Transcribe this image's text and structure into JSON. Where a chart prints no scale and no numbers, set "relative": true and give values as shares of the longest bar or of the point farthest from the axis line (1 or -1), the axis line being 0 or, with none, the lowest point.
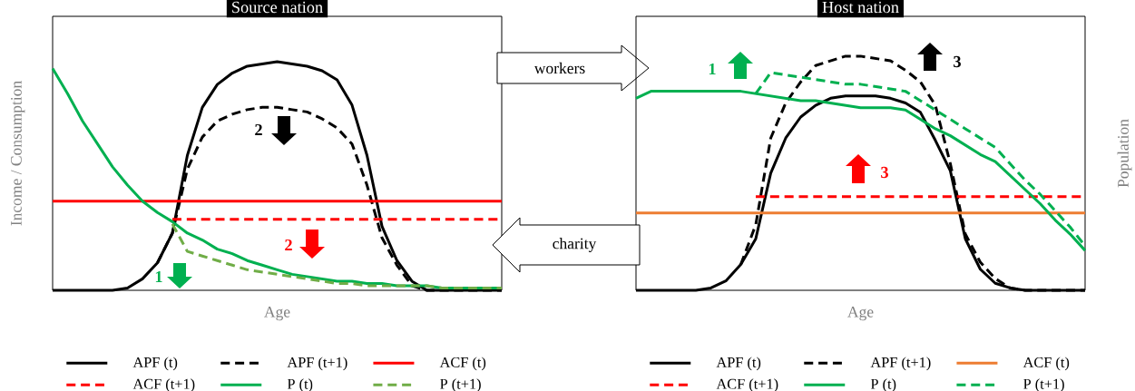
{
  "chart_data": [
    {
      "type": "line",
      "title": "Source nation",
      "xlabel": "Age",
      "ylabel": "Income / Consumption",
      "relative": true,
      "legend": "bottom",
      "categories": [
        null,
        null,
        null,
        null,
        null,
        null,
        null,
        null,
        null,
        null,
        null,
        null,
        null,
        null,
        null,
        null,
        null,
        null,
        null,
        null,
        null,
        null,
        null,
        null,
        null,
        null,
        null,
        null,
        null,
        null,
        null
      ],
      "annotations": [
        "1",
        "2",
        "2",
        "workers"
      ],
      "series": [
        {
          "name": "APF (t)",
          "color": "#000000",
          "line_style": "solid",
          "values": [
            0,
            0,
            0,
            0,
            0,
            0.01,
            0.05,
            0.12,
            0.25,
            0.59,
            0.8,
            0.9,
            0.95,
            0.98,
            0.99,
            1,
            0.99,
            0.98,
            0.96,
            0.92,
            0.81,
            0.59,
            0.28,
            0.13,
            0.04,
            0,
            0,
            0,
            0,
            0,
            0
          ]
        },
        {
          "name": "APF (t+1)",
          "color": "#000000",
          "line_style": "dashed",
          "values": [
            null,
            null,
            null,
            null,
            null,
            null,
            null,
            0.12,
            0.25,
            0.53,
            0.67,
            0.74,
            0.77,
            0.79,
            0.8,
            0.8,
            0.79,
            0.78,
            0.75,
            0.71,
            0.64,
            0.46,
            0.23,
            0.11,
            0.02,
            0,
            0,
            0,
            0,
            0,
            0
          ]
        },
        {
          "name": "ACF (t)",
          "color": "#ff0000",
          "line_style": "solid",
          "values": [
            0.39,
            0.39,
            0.39,
            0.39,
            0.39,
            0.39,
            0.39,
            0.39,
            0.39,
            0.39,
            0.39,
            0.39,
            0.39,
            0.39,
            0.39,
            0.39,
            0.39,
            0.39,
            0.39,
            0.39,
            0.39,
            0.39,
            0.39,
            0.39,
            0.39,
            0.39,
            0.39,
            0.39,
            0.39,
            0.39,
            0.39
          ]
        },
        {
          "name": "ACF (t+1)",
          "color": "#ff0000",
          "line_style": "dashed",
          "values": [
            null,
            null,
            null,
            null,
            null,
            null,
            null,
            null,
            0.31,
            0.31,
            0.31,
            0.31,
            0.31,
            0.31,
            0.31,
            0.31,
            0.31,
            0.31,
            0.31,
            0.31,
            0.31,
            0.31,
            0.31,
            0.31,
            0.31,
            0.31,
            0.31,
            0.31,
            0.31,
            0.31,
            0.31
          ]
        },
        {
          "name": "P (t)",
          "color": "#00b050",
          "line_style": "solid",
          "values": [
            0.97,
            0.86,
            0.74,
            0.64,
            0.54,
            0.46,
            0.39,
            0.34,
            0.3,
            0.25,
            0.22,
            0.18,
            0.16,
            0.13,
            0.11,
            0.09,
            0.07,
            0.06,
            0.05,
            0.04,
            0.04,
            0.03,
            0.03,
            0.02,
            0.02,
            0.02,
            0.01,
            0.01,
            0.01,
            0.01,
            0.01
          ]
        },
        {
          "name": "P (t+1)",
          "color": "#70ad47",
          "line_style": "dashed",
          "values": [
            null,
            null,
            null,
            null,
            null,
            null,
            null,
            null,
            0.29,
            0.17,
            0.15,
            0.13,
            0.11,
            0.09,
            0.08,
            0.07,
            0.06,
            0.05,
            0.04,
            0.03,
            0.03,
            0.02,
            0.02,
            0.02,
            0.02,
            0.02,
            0.01,
            0.01,
            0.01,
            0.01,
            0.01
          ]
        }
      ]
    },
    {
      "type": "line",
      "title": "Host nation",
      "xlabel": "Age",
      "y2label": "Population",
      "relative": true,
      "legend": "bottom",
      "categories": [
        null,
        null,
        null,
        null,
        null,
        null,
        null,
        null,
        null,
        null,
        null,
        null,
        null,
        null,
        null,
        null,
        null,
        null,
        null,
        null,
        null,
        null,
        null,
        null,
        null,
        null,
        null,
        null,
        null,
        null,
        null
      ],
      "annotations": [
        "1",
        "3",
        "3",
        "charity"
      ],
      "series": [
        {
          "name": "APF (t)",
          "color": "#000000",
          "line_style": "solid",
          "values": [
            0,
            0,
            0,
            0,
            0,
            0.01,
            0.04,
            0.11,
            0.22,
            0.5,
            0.65,
            0.74,
            0.79,
            0.82,
            0.83,
            0.83,
            0.83,
            0.82,
            0.8,
            0.76,
            0.64,
            0.51,
            0.22,
            0.09,
            0.03,
            0.01,
            0,
            0,
            0,
            0,
            0
          ]
        },
        {
          "name": "APF (t+1)",
          "color": "#000000",
          "line_style": "dashed",
          "values": [
            null,
            null,
            null,
            null,
            null,
            null,
            null,
            0.11,
            0.28,
            0.65,
            0.8,
            0.89,
            0.96,
            0.98,
            1,
            1,
            0.99,
            0.98,
            0.94,
            0.89,
            0.79,
            0.54,
            0.24,
            0.12,
            0.05,
            0.01,
            0,
            0,
            0,
            0,
            0
          ]
        },
        {
          "name": "ACF (t)",
          "color": "#ed7d31",
          "line_style": "solid",
          "values": [
            0.33,
            0.33,
            0.33,
            0.33,
            0.33,
            0.33,
            0.33,
            0.33,
            0.33,
            0.33,
            0.33,
            0.33,
            0.33,
            0.33,
            0.33,
            0.33,
            0.33,
            0.33,
            0.33,
            0.33,
            0.33,
            0.33,
            0.33,
            0.33,
            0.33,
            0.33,
            0.33,
            0.33,
            0.33,
            0.33,
            0.33
          ]
        },
        {
          "name": "ACF (t+1)",
          "color": "#ff0000",
          "line_style": "dashed",
          "values": [
            null,
            null,
            null,
            null,
            null,
            null,
            null,
            null,
            0.4,
            0.4,
            0.4,
            0.4,
            0.4,
            0.4,
            0.4,
            0.4,
            0.4,
            0.4,
            0.4,
            0.4,
            0.4,
            0.4,
            0.4,
            0.4,
            0.4,
            0.4,
            0.4,
            0.4,
            0.4,
            0.4,
            0.4
          ]
        },
        {
          "name": "P (t)",
          "color": "#00b050",
          "line_style": "solid",
          "values": [
            0.82,
            0.85,
            0.85,
            0.85,
            0.85,
            0.85,
            0.85,
            0.85,
            0.84,
            0.83,
            0.82,
            0.81,
            0.81,
            0.8,
            0.79,
            0.78,
            0.78,
            0.78,
            0.77,
            0.73,
            0.69,
            0.66,
            0.62,
            0.58,
            0.55,
            0.49,
            0.43,
            0.37,
            0.3,
            0.24,
            0.17
          ]
        },
        {
          "name": "P (t+1)",
          "color": "#00b050",
          "line_style": "dashed",
          "values": [
            null,
            null,
            null,
            null,
            null,
            null,
            null,
            null,
            0.84,
            0.93,
            0.92,
            0.91,
            0.9,
            0.89,
            0.88,
            0.88,
            0.87,
            0.86,
            0.85,
            0.81,
            0.77,
            0.73,
            0.69,
            0.65,
            0.61,
            0.54,
            0.47,
            0.41,
            0.34,
            0.27,
            0.19
          ]
        }
      ]
    }
  ]
}
